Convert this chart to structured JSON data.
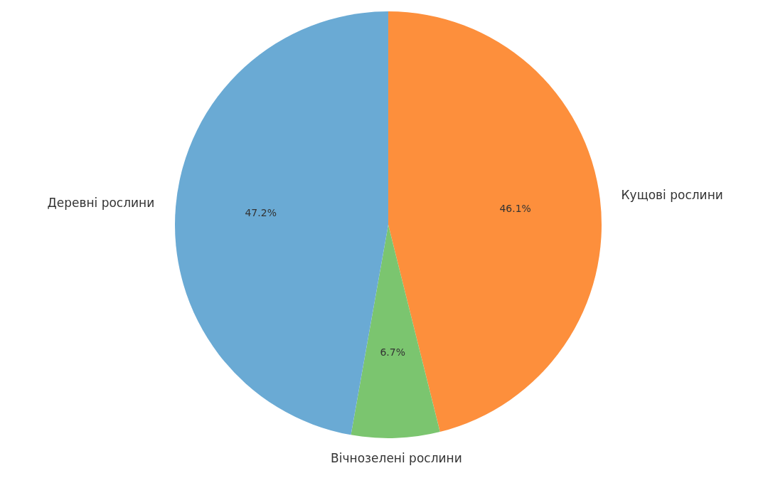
{
  "chart_data": {
    "type": "pie",
    "categories": [
      "Кущові рослини",
      "Вічнозелені рослини",
      "Деревні рослини"
    ],
    "values": [
      46.1,
      6.7,
      47.2
    ],
    "colors": [
      "#fd8f3c",
      "#7bc56f",
      "#6aaad4"
    ],
    "value_labels": [
      "46.1%",
      "6.7%",
      "47.2%"
    ],
    "legend": false
  }
}
